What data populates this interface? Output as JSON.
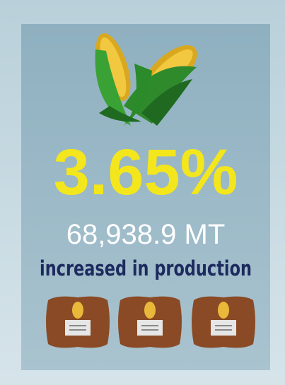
{
  "stat": "3.65%",
  "amount": "68,938.9 MT",
  "caption": "increased in production"
}
